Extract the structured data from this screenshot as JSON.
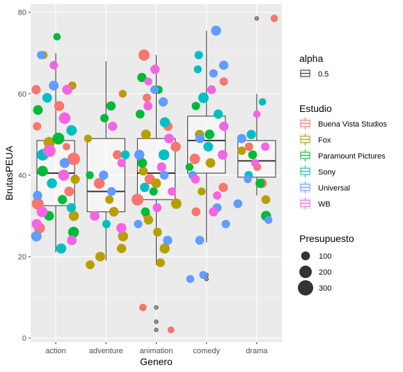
{
  "chart_data": {
    "type": "scatter",
    "xlabel": "Genero",
    "ylabel": "BrutasPEUA",
    "categories": [
      "action",
      "adventure",
      "animation",
      "comedy",
      "drama"
    ],
    "ylim": [
      -1,
      82
    ],
    "yticks": [
      0,
      20,
      40,
      60,
      80
    ],
    "grid": true,
    "legend_placement": "right",
    "boxplots": [
      {
        "category": "action",
        "whisker_low": 21,
        "q1": 32.5,
        "median": 40.5,
        "q3": 48.5,
        "whisker_high": 70,
        "outliers": [
          74
        ]
      },
      {
        "category": "adventure",
        "whisker_low": 19,
        "q1": 31,
        "median": 36,
        "q3": 49,
        "whisker_high": 68,
        "outliers": []
      },
      {
        "category": "animation",
        "whisker_low": 18,
        "q1": 34,
        "median": 40.5,
        "q3": 49,
        "whisker_high": 69.5,
        "outliers": [
          7.5,
          4,
          2
        ]
      },
      {
        "category": "comedy",
        "whisker_low": 23.5,
        "q1": 40.5,
        "median": 48.5,
        "q3": 54.5,
        "whisker_high": 75.5,
        "outliers": [
          15.5,
          14.5
        ]
      },
      {
        "category": "drama",
        "whisker_low": 35,
        "q1": 39.5,
        "median": 43.5,
        "q3": 48.5,
        "whisker_high": 60,
        "outliers": [
          78.5
        ]
      }
    ],
    "series": [
      {
        "name": "Buena Vista Studios",
        "color": "#F8766D",
        "points": [
          {
            "x": "action",
            "y": 27,
            "size": 150
          },
          {
            "x": "action",
            "y": 36,
            "size": 120
          },
          {
            "x": "action",
            "y": 44,
            "size": 200
          },
          {
            "x": "action",
            "y": 52,
            "size": 90
          },
          {
            "x": "action",
            "y": 61,
            "size": 110
          },
          {
            "x": "action",
            "y": 33,
            "size": 180
          },
          {
            "x": "action",
            "y": 47,
            "size": 70
          },
          {
            "x": "action",
            "y": 57,
            "size": 130
          },
          {
            "x": "adventure",
            "y": 60,
            "size": 80
          },
          {
            "x": "adventure",
            "y": 45,
            "size": 110
          },
          {
            "x": "adventure",
            "y": 38,
            "size": 150
          },
          {
            "x": "animation",
            "y": 69.5,
            "size": 160
          },
          {
            "x": "animation",
            "y": 59,
            "size": 90
          },
          {
            "x": "animation",
            "y": 52,
            "size": 110
          },
          {
            "x": "animation",
            "y": 47,
            "size": 130
          },
          {
            "x": "animation",
            "y": 43,
            "size": 100
          },
          {
            "x": "animation",
            "y": 39,
            "size": 140
          },
          {
            "x": "animation",
            "y": 34,
            "size": 180
          },
          {
            "x": "animation",
            "y": 30,
            "size": 80
          },
          {
            "x": "animation",
            "y": 7.5,
            "size": 70
          },
          {
            "x": "animation",
            "y": 2,
            "size": 60
          },
          {
            "x": "comedy",
            "y": 44,
            "size": 140
          },
          {
            "x": "comedy",
            "y": 37,
            "size": 110
          },
          {
            "x": "comedy",
            "y": 31,
            "size": 100
          },
          {
            "x": "comedy",
            "y": 63,
            "size": 90
          },
          {
            "x": "drama",
            "y": 78.5,
            "size": 70
          },
          {
            "x": "drama",
            "y": 47,
            "size": 90
          },
          {
            "x": "drama",
            "y": 38,
            "size": 120
          },
          {
            "x": "drama",
            "y": 42,
            "size": 80
          }
        ]
      },
      {
        "name": "Fox",
        "color": "#B79F00",
        "points": [
          {
            "x": "action",
            "y": 69.5,
            "size": 80
          },
          {
            "x": "action",
            "y": 62,
            "size": 90
          },
          {
            "x": "action",
            "y": 48,
            "size": 160
          },
          {
            "x": "action",
            "y": 39,
            "size": 110
          },
          {
            "x": "action",
            "y": 30,
            "size": 130
          },
          {
            "x": "adventure",
            "y": 60,
            "size": 60
          },
          {
            "x": "adventure",
            "y": 49,
            "size": 80
          },
          {
            "x": "adventure",
            "y": 25,
            "size": 130
          },
          {
            "x": "adventure",
            "y": 22,
            "size": 110
          },
          {
            "x": "adventure",
            "y": 20,
            "size": 120
          },
          {
            "x": "adventure",
            "y": 18,
            "size": 100
          },
          {
            "x": "adventure",
            "y": 31,
            "size": 120
          },
          {
            "x": "adventure",
            "y": 34,
            "size": 90
          },
          {
            "x": "animation",
            "y": 50,
            "size": 120
          },
          {
            "x": "animation",
            "y": 41,
            "size": 100
          },
          {
            "x": "animation",
            "y": 33,
            "size": 140
          },
          {
            "x": "animation",
            "y": 29,
            "size": 110
          },
          {
            "x": "animation",
            "y": 26,
            "size": 100
          },
          {
            "x": "animation",
            "y": 22,
            "size": 130
          },
          {
            "x": "animation",
            "y": 18.5,
            "size": 100
          },
          {
            "x": "animation",
            "y": 38,
            "size": 120
          },
          {
            "x": "comedy",
            "y": 36,
            "size": 80
          },
          {
            "x": "comedy",
            "y": 43,
            "size": 120
          },
          {
            "x": "comedy",
            "y": 50,
            "size": 110
          },
          {
            "x": "drama",
            "y": 34,
            "size": 100
          },
          {
            "x": "drama",
            "y": 46,
            "size": 90
          }
        ]
      },
      {
        "name": "Paramount Pictures",
        "color": "#00BA38",
        "points": [
          {
            "x": "action",
            "y": 74,
            "size": 70
          },
          {
            "x": "action",
            "y": 56,
            "size": 120
          },
          {
            "x": "action",
            "y": 49,
            "size": 180
          },
          {
            "x": "action",
            "y": 41,
            "size": 140
          },
          {
            "x": "action",
            "y": 34,
            "size": 110
          },
          {
            "x": "action",
            "y": 26,
            "size": 150
          },
          {
            "x": "action",
            "y": 30,
            "size": 120
          },
          {
            "x": "adventure",
            "y": 57,
            "size": 110
          },
          {
            "x": "adventure",
            "y": 54,
            "size": 90
          },
          {
            "x": "adventure",
            "y": 40,
            "size": 80
          },
          {
            "x": "animation",
            "y": 64,
            "size": 110
          },
          {
            "x": "animation",
            "y": 61,
            "size": 90
          },
          {
            "x": "animation",
            "y": 55,
            "size": 100
          },
          {
            "x": "animation",
            "y": 43,
            "size": 120
          },
          {
            "x": "animation",
            "y": 36,
            "size": 90
          },
          {
            "x": "animation",
            "y": 31,
            "size": 100
          },
          {
            "x": "comedy",
            "y": 57,
            "size": 90
          },
          {
            "x": "comedy",
            "y": 50,
            "size": 120
          },
          {
            "x": "comedy",
            "y": 42,
            "size": 80
          },
          {
            "x": "drama",
            "y": 30,
            "size": 130
          },
          {
            "x": "drama",
            "y": 38,
            "size": 110
          },
          {
            "x": "drama",
            "y": 45,
            "size": 100
          }
        ]
      },
      {
        "name": "Sony",
        "color": "#00BFC4",
        "points": [
          {
            "x": "action",
            "y": 59,
            "size": 120
          },
          {
            "x": "action",
            "y": 51,
            "size": 140
          },
          {
            "x": "action",
            "y": 45,
            "size": 170
          },
          {
            "x": "action",
            "y": 38,
            "size": 130
          },
          {
            "x": "action",
            "y": 22,
            "size": 130
          },
          {
            "x": "action",
            "y": 32,
            "size": 110
          },
          {
            "x": "adventure",
            "y": 45,
            "size": 100
          },
          {
            "x": "adventure",
            "y": 28,
            "size": 90
          },
          {
            "x": "animation",
            "y": 53,
            "size": 130
          },
          {
            "x": "animation",
            "y": 45,
            "size": 150
          },
          {
            "x": "animation",
            "y": 37,
            "size": 110
          },
          {
            "x": "comedy",
            "y": 69.5,
            "size": 90
          },
          {
            "x": "comedy",
            "y": 59,
            "size": 140
          },
          {
            "x": "comedy",
            "y": 55,
            "size": 110
          },
          {
            "x": "comedy",
            "y": 47,
            "size": 120
          },
          {
            "x": "comedy",
            "y": 66,
            "size": 80
          },
          {
            "x": "drama",
            "y": 50,
            "size": 110
          },
          {
            "x": "drama",
            "y": 40,
            "size": 90
          },
          {
            "x": "drama",
            "y": 58,
            "size": 70
          }
        ]
      },
      {
        "name": "Universal",
        "color": "#619CFF",
        "points": [
          {
            "x": "action",
            "y": 69.5,
            "size": 90
          },
          {
            "x": "action",
            "y": 62,
            "size": 120
          },
          {
            "x": "action",
            "y": 43,
            "size": 130
          },
          {
            "x": "action",
            "y": 35,
            "size": 110
          },
          {
            "x": "action",
            "y": 25,
            "size": 140
          },
          {
            "x": "adventure",
            "y": 40,
            "size": 110
          },
          {
            "x": "adventure",
            "y": 36,
            "size": 100
          },
          {
            "x": "animation",
            "y": 61,
            "size": 90
          },
          {
            "x": "animation",
            "y": 58,
            "size": 110
          },
          {
            "x": "animation",
            "y": 45,
            "size": 130
          },
          {
            "x": "animation",
            "y": 40,
            "size": 100
          },
          {
            "x": "animation",
            "y": 28,
            "size": 90
          },
          {
            "x": "animation",
            "y": 24,
            "size": 110
          },
          {
            "x": "comedy",
            "y": 75.5,
            "size": 130
          },
          {
            "x": "comedy",
            "y": 67,
            "size": 110
          },
          {
            "x": "comedy",
            "y": 65,
            "size": 90
          },
          {
            "x": "comedy",
            "y": 49,
            "size": 110
          },
          {
            "x": "comedy",
            "y": 40,
            "size": 90
          },
          {
            "x": "comedy",
            "y": 32,
            "size": 100
          },
          {
            "x": "comedy",
            "y": 28,
            "size": 90
          },
          {
            "x": "comedy",
            "y": 24,
            "size": 100
          },
          {
            "x": "comedy",
            "y": 15.5,
            "size": 80
          },
          {
            "x": "comedy",
            "y": 14.5,
            "size": 80
          },
          {
            "x": "drama",
            "y": 49,
            "size": 110
          },
          {
            "x": "drama",
            "y": 39,
            "size": 80
          },
          {
            "x": "drama",
            "y": 29,
            "size": 80
          },
          {
            "x": "drama",
            "y": 33,
            "size": 100
          }
        ]
      },
      {
        "name": "WB",
        "color": "#F564E3",
        "points": [
          {
            "x": "action",
            "y": 67,
            "size": 90
          },
          {
            "x": "action",
            "y": 61,
            "size": 130
          },
          {
            "x": "action",
            "y": 54,
            "size": 170
          },
          {
            "x": "action",
            "y": 46,
            "size": 200
          },
          {
            "x": "action",
            "y": 40,
            "size": 160
          },
          {
            "x": "action",
            "y": 31,
            "size": 150
          },
          {
            "x": "action",
            "y": 28,
            "size": 130
          },
          {
            "x": "action",
            "y": 24,
            "size": 120
          },
          {
            "x": "adventure",
            "y": 52,
            "size": 110
          },
          {
            "x": "adventure",
            "y": 43,
            "size": 90
          },
          {
            "x": "adventure",
            "y": 30,
            "size": 120
          },
          {
            "x": "adventure",
            "y": 27,
            "size": 130
          },
          {
            "x": "animation",
            "y": 66,
            "size": 110
          },
          {
            "x": "animation",
            "y": 63,
            "size": 80
          },
          {
            "x": "animation",
            "y": 57,
            "size": 100
          },
          {
            "x": "animation",
            "y": 49,
            "size": 120
          },
          {
            "x": "animation",
            "y": 42,
            "size": 110
          },
          {
            "x": "animation",
            "y": 36,
            "size": 90
          },
          {
            "x": "animation",
            "y": 32,
            "size": 100
          },
          {
            "x": "comedy",
            "y": 61,
            "size": 100
          },
          {
            "x": "comedy",
            "y": 52,
            "size": 110
          },
          {
            "x": "comedy",
            "y": 45,
            "size": 120
          },
          {
            "x": "comedy",
            "y": 39,
            "size": 100
          },
          {
            "x": "comedy",
            "y": 35,
            "size": 90
          },
          {
            "x": "comedy",
            "y": 31,
            "size": 110
          },
          {
            "x": "drama",
            "y": 55,
            "size": 70
          },
          {
            "x": "drama",
            "y": 47,
            "size": 90
          },
          {
            "x": "drama",
            "y": 43,
            "size": 80
          }
        ]
      }
    ],
    "legends": {
      "alpha": {
        "title": "alpha",
        "entries": [
          "0.5"
        ]
      },
      "color": {
        "title": "Estudio"
      },
      "size": {
        "title": "Presupuesto",
        "entries": [
          "100",
          "200",
          "300"
        ],
        "values": [
          100,
          200,
          300
        ]
      }
    }
  }
}
